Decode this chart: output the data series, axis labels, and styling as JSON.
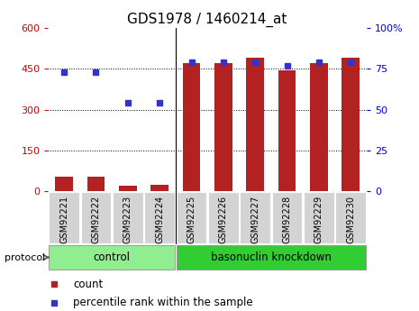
{
  "title": "GDS1978 / 1460214_at",
  "samples": [
    "GSM92221",
    "GSM92222",
    "GSM92223",
    "GSM92224",
    "GSM92225",
    "GSM92226",
    "GSM92227",
    "GSM92228",
    "GSM92229",
    "GSM92230"
  ],
  "counts": [
    55,
    55,
    22,
    25,
    470,
    470,
    490,
    445,
    470,
    490
  ],
  "percentile_ranks": [
    73,
    73,
    54,
    54,
    79,
    79,
    79,
    77,
    79,
    79
  ],
  "groups": [
    {
      "label": "control",
      "start": 0,
      "end": 4
    },
    {
      "label": "basonuclin knockdown",
      "start": 4,
      "end": 10
    }
  ],
  "bar_color": "#b22222",
  "dot_color": "#3333cc",
  "ylim_left": [
    0,
    600
  ],
  "ylim_right": [
    0,
    100
  ],
  "yticks_left": [
    0,
    150,
    300,
    450,
    600
  ],
  "yticks_right": [
    0,
    25,
    50,
    75,
    100
  ],
  "left_tick_color": "#cc0000",
  "right_tick_color": "#0000cc",
  "group_bg_control": "#90ee90",
  "group_bg_knockdown": "#32cd32",
  "protocol_label": "protocol",
  "legend_count": "count",
  "legend_percentile": "percentile rank within the sample",
  "title_fontsize": 11,
  "tick_label_fontsize": 7,
  "group_label_fontsize": 8.5,
  "legend_fontsize": 8.5,
  "dotted_lines": [
    150,
    300,
    450
  ]
}
